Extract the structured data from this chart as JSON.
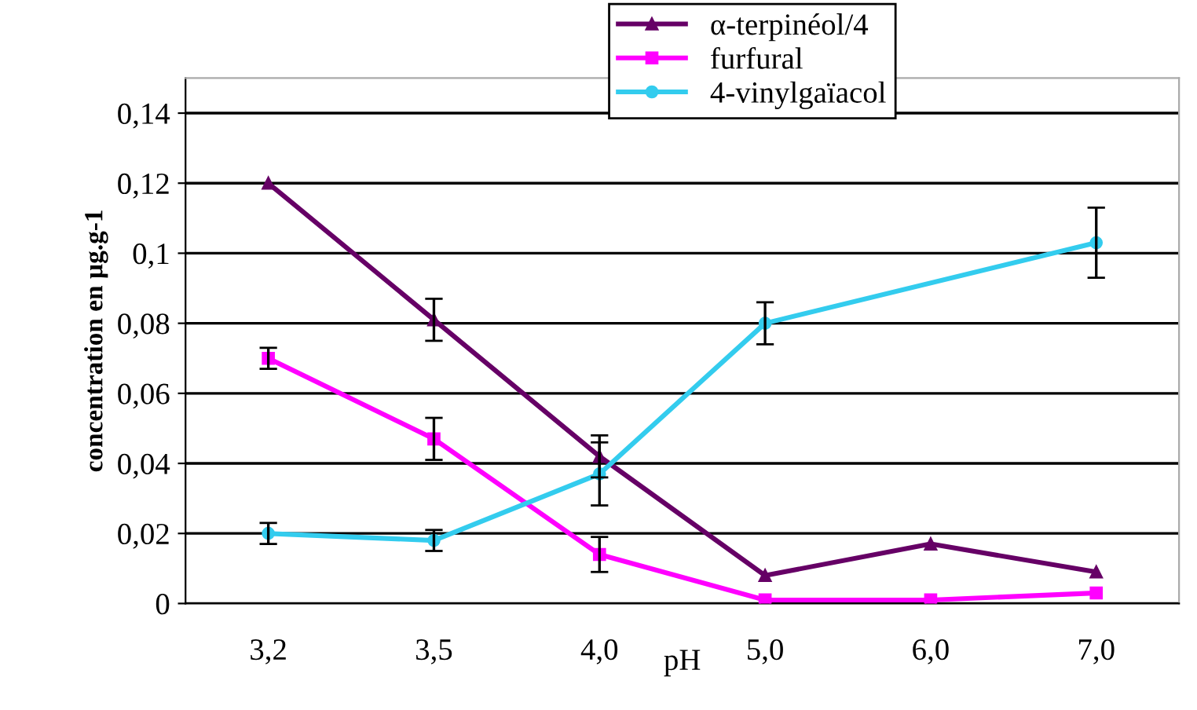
{
  "chart_data": {
    "type": "line",
    "xlabel": "pH",
    "ylabel": "concentration en µg.g-1",
    "categories": [
      "3,2",
      "3,5",
      "4,0",
      "5,0",
      "6,0",
      "7,0"
    ],
    "series": [
      {
        "name": "α-terpinéol/4",
        "color": "#660066",
        "marker": "triangle",
        "values": [
          0.12,
          0.081,
          0.042,
          0.008,
          0.017,
          0.009
        ],
        "errors": [
          null,
          0.006,
          0.006,
          null,
          null,
          null
        ]
      },
      {
        "name": "furfural",
        "color": "#ff00ff",
        "marker": "square",
        "values": [
          0.07,
          0.047,
          0.014,
          0.001,
          0.001,
          0.003
        ],
        "errors": [
          0.003,
          0.006,
          0.005,
          null,
          null,
          null
        ]
      },
      {
        "name": "4-vinylgaïacol",
        "color": "#33ccee",
        "marker": "circle",
        "values": [
          0.02,
          0.018,
          0.037,
          0.08,
          null,
          0.103
        ],
        "errors": [
          0.003,
          0.003,
          0.009,
          0.006,
          null,
          0.01
        ]
      }
    ],
    "ylim": [
      0,
      0.15
    ],
    "yticks": [
      0,
      {
        "value": 0.02,
        "label": "0,02"
      },
      {
        "value": 0.04,
        "label": "0,04"
      },
      {
        "value": 0.06,
        "label": "0,06"
      },
      {
        "value": 0.08,
        "label": "0,08"
      },
      {
        "value": 0.1,
        "label": "0,1"
      },
      {
        "value": 0.12,
        "label": "0,12"
      },
      {
        "value": 0.14,
        "label": "0,14"
      }
    ],
    "grid": "y",
    "legend": "top right",
    "line_style": "solid"
  }
}
